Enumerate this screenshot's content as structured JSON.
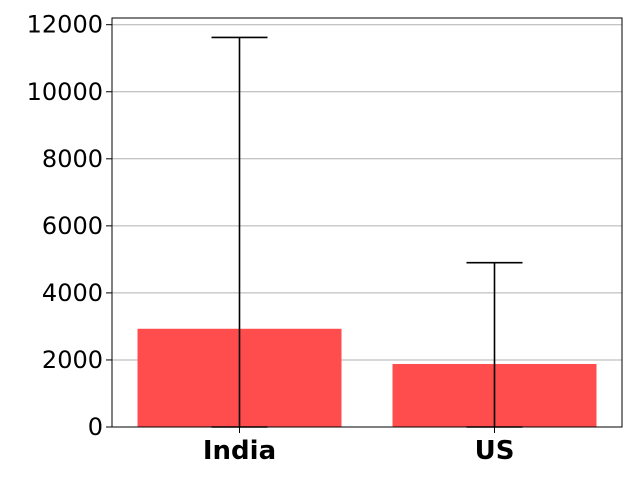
{
  "chart_data": {
    "type": "bar",
    "categories": [
      "India",
      "US"
    ],
    "values": [
      2930,
      1880
    ],
    "error_lower": [
      0,
      0
    ],
    "error_upper": [
      11620,
      4900
    ],
    "ylim": [
      0,
      12200
    ],
    "yticks": [
      0,
      2000,
      4000,
      6000,
      8000,
      10000,
      12000
    ],
    "grid": "y",
    "bar_color": "#ff4c4c",
    "errorbar_color": "#000000",
    "title": "",
    "xlabel": "",
    "ylabel": ""
  }
}
